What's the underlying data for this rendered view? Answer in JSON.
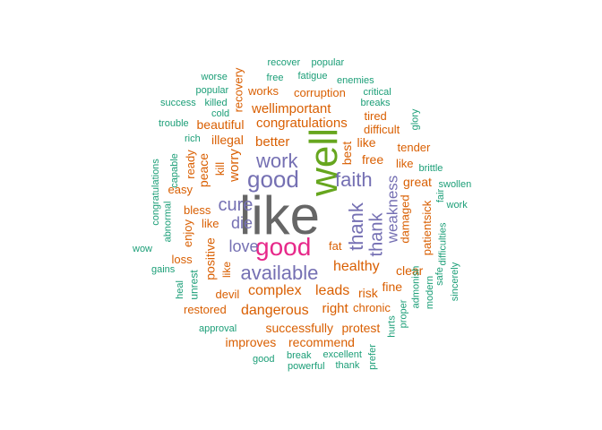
{
  "colors": {
    "teal": "#1b9e77",
    "orange": "#d95f02",
    "purple": "#7570b3",
    "magenta": "#e7298a",
    "green": "#66a61e",
    "gray": "#666666"
  },
  "words": [
    {
      "text": "like",
      "color": "gray"
    },
    {
      "text": "well",
      "color": "green"
    },
    {
      "text": "good",
      "color": "magenta"
    },
    {
      "text": "good",
      "color": "purple"
    },
    {
      "text": "work",
      "color": "purple"
    },
    {
      "text": "faith",
      "color": "purple"
    },
    {
      "text": "thank",
      "color": "purple"
    },
    {
      "text": "thank",
      "color": "purple"
    },
    {
      "text": "available",
      "color": "purple"
    },
    {
      "text": "cure",
      "color": "purple"
    },
    {
      "text": "die",
      "color": "purple"
    },
    {
      "text": "love",
      "color": "purple"
    },
    {
      "text": "weakness",
      "color": "purple"
    },
    {
      "text": "healthy",
      "color": "orange"
    },
    {
      "text": "dangerous",
      "color": "orange"
    },
    {
      "text": "complex",
      "color": "orange"
    },
    {
      "text": "leads",
      "color": "orange"
    },
    {
      "text": "risk",
      "color": "orange"
    },
    {
      "text": "right",
      "color": "orange"
    },
    {
      "text": "chronic",
      "color": "orange"
    },
    {
      "text": "successfully",
      "color": "orange"
    },
    {
      "text": "protest",
      "color": "orange"
    },
    {
      "text": "improves",
      "color": "orange"
    },
    {
      "text": "recommend",
      "color": "orange"
    },
    {
      "text": "restored",
      "color": "orange"
    },
    {
      "text": "devil",
      "color": "orange"
    },
    {
      "text": "clear",
      "color": "orange"
    },
    {
      "text": "fine",
      "color": "orange"
    },
    {
      "text": "fat",
      "color": "orange"
    },
    {
      "text": "positive",
      "color": "orange"
    },
    {
      "text": "like",
      "color": "orange"
    },
    {
      "text": "like",
      "color": "orange"
    },
    {
      "text": "like",
      "color": "orange"
    },
    {
      "text": "loss",
      "color": "orange"
    },
    {
      "text": "enjoy",
      "color": "orange"
    },
    {
      "text": "bless",
      "color": "orange"
    },
    {
      "text": "easy",
      "color": "orange"
    },
    {
      "text": "peace",
      "color": "orange"
    },
    {
      "text": "worry",
      "color": "orange"
    },
    {
      "text": "kill",
      "color": "orange"
    },
    {
      "text": "ready",
      "color": "orange"
    },
    {
      "text": "illegal",
      "color": "orange"
    },
    {
      "text": "better",
      "color": "orange"
    },
    {
      "text": "beautiful",
      "color": "orange"
    },
    {
      "text": "congratulations",
      "color": "orange"
    },
    {
      "text": "wellimportant",
      "color": "orange"
    },
    {
      "text": "corruption",
      "color": "orange"
    },
    {
      "text": "works",
      "color": "orange"
    },
    {
      "text": "recovery",
      "color": "orange"
    },
    {
      "text": "tired",
      "color": "orange"
    },
    {
      "text": "difficult",
      "color": "orange"
    },
    {
      "text": "best",
      "color": "orange"
    },
    {
      "text": "free",
      "color": "orange"
    },
    {
      "text": "like",
      "color": "orange"
    },
    {
      "text": "tender",
      "color": "orange"
    },
    {
      "text": "great",
      "color": "orange"
    },
    {
      "text": "damaged",
      "color": "orange"
    },
    {
      "text": "patientsick",
      "color": "orange"
    },
    {
      "text": "recover",
      "color": "teal"
    },
    {
      "text": "popular",
      "color": "teal"
    },
    {
      "text": "free",
      "color": "teal"
    },
    {
      "text": "fatigue",
      "color": "teal"
    },
    {
      "text": "enemies",
      "color": "teal"
    },
    {
      "text": "worse",
      "color": "teal"
    },
    {
      "text": "popular",
      "color": "teal"
    },
    {
      "text": "critical",
      "color": "teal"
    },
    {
      "text": "success",
      "color": "teal"
    },
    {
      "text": "killed",
      "color": "teal"
    },
    {
      "text": "breaks",
      "color": "teal"
    },
    {
      "text": "cold",
      "color": "teal"
    },
    {
      "text": "glory",
      "color": "teal"
    },
    {
      "text": "trouble",
      "color": "teal"
    },
    {
      "text": "rich",
      "color": "teal"
    },
    {
      "text": "capable",
      "color": "teal"
    },
    {
      "text": "congratulations",
      "color": "teal"
    },
    {
      "text": "abnormal",
      "color": "teal"
    },
    {
      "text": "wow",
      "color": "teal"
    },
    {
      "text": "gains",
      "color": "teal"
    },
    {
      "text": "heal",
      "color": "teal"
    },
    {
      "text": "unrest",
      "color": "teal"
    },
    {
      "text": "brittle",
      "color": "teal"
    },
    {
      "text": "swollen",
      "color": "teal"
    },
    {
      "text": "fair",
      "color": "teal"
    },
    {
      "text": "work",
      "color": "teal"
    },
    {
      "text": "difficulties",
      "color": "teal"
    },
    {
      "text": "safe",
      "color": "teal"
    },
    {
      "text": "sincerely",
      "color": "teal"
    },
    {
      "text": "admonish",
      "color": "teal"
    },
    {
      "text": "modern",
      "color": "teal"
    },
    {
      "text": "proper",
      "color": "teal"
    },
    {
      "text": "hurts",
      "color": "teal"
    },
    {
      "text": "approval",
      "color": "teal"
    },
    {
      "text": "good",
      "color": "teal"
    },
    {
      "text": "break",
      "color": "teal"
    },
    {
      "text": "excellent",
      "color": "teal"
    },
    {
      "text": "powerful",
      "color": "teal"
    },
    {
      "text": "thank",
      "color": "teal"
    },
    {
      "text": "prefer",
      "color": "teal"
    }
  ]
}
